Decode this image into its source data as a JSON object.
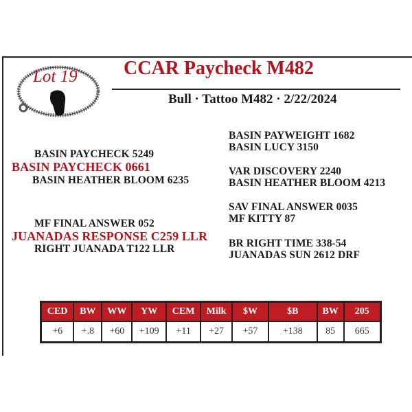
{
  "lot": "Lot 19",
  "title": "CCAR Paycheck M482",
  "subtitle": "Bull · Tattoo M482 · 2/22/2024",
  "pedigree": {
    "sire_sire": "BASIN PAYCHECK 5249",
    "sire": "BASIN PAYCHECK 0661",
    "sire_dam": "BASIN HEATHER BLOOM 6235",
    "dam_sire": "MF FINAL ANSWER 052",
    "dam": "JUANADAS RESPONSE C259 LLR",
    "dam_dam": "RIGHT JUANADA T122 LLR",
    "right": [
      "BASIN PAYWEIGHT 1682",
      "BASIN LUCY 3150",
      "VAR DISCOVERY 2240",
      "BASIN HEATHER BLOOM 4213",
      "SAV FINAL ANSWER 0035",
      "MF KITTY 87",
      "BR RIGHT TIME 338-54",
      "JUANADAS SUN 2612 DRF"
    ]
  },
  "epd": {
    "headers": [
      "CED",
      "BW",
      "WW",
      "YW",
      "CEM",
      "Milk",
      "$W",
      "$B",
      "BW",
      "205"
    ],
    "values": [
      "+6",
      "+.8",
      "+60",
      "+109",
      "+11",
      "+27",
      "+57",
      "+138",
      "85",
      "665"
    ]
  },
  "colors": {
    "accent": "#c01c24"
  }
}
